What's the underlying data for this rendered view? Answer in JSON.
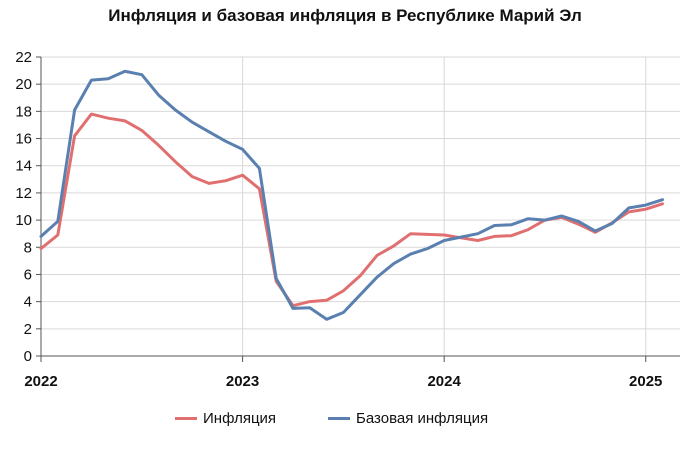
{
  "chart_data": {
    "type": "line",
    "title": "Инфляция и базовая инфляция в Республике Марий Эл",
    "xlabel": "",
    "ylabel": "",
    "ylim": [
      0,
      22
    ],
    "yticks": [
      0,
      2,
      4,
      6,
      8,
      10,
      12,
      14,
      16,
      18,
      20,
      22
    ],
    "xlim": [
      2022.0,
      2025.17
    ],
    "xticks": [
      {
        "value": 2022,
        "label": "2022"
      },
      {
        "value": 2023,
        "label": "2023"
      },
      {
        "value": 2024,
        "label": "2024"
      },
      {
        "value": 2025,
        "label": "2025"
      }
    ],
    "grid": true,
    "legend_position": "bottom",
    "series": [
      {
        "name": "Инфляция",
        "color": "#e07070",
        "points": [
          [
            2022.0,
            7.9
          ],
          [
            2022.0833,
            8.9
          ],
          [
            2022.1667,
            16.2
          ],
          [
            2022.25,
            17.8
          ],
          [
            2022.3333,
            17.5
          ],
          [
            2022.4167,
            17.3
          ],
          [
            2022.5,
            16.6
          ],
          [
            2022.5833,
            15.5
          ],
          [
            2022.6667,
            14.3
          ],
          [
            2022.75,
            13.2
          ],
          [
            2022.8333,
            12.7
          ],
          [
            2022.9167,
            12.9
          ],
          [
            2023.0,
            13.3
          ],
          [
            2023.0833,
            12.3
          ],
          [
            2023.1667,
            5.5
          ],
          [
            2023.25,
            3.7
          ],
          [
            2023.3333,
            4.0
          ],
          [
            2023.4167,
            4.1
          ],
          [
            2023.5,
            4.8
          ],
          [
            2023.5833,
            5.9
          ],
          [
            2023.6667,
            7.4
          ],
          [
            2023.75,
            8.1
          ],
          [
            2023.8333,
            9.0
          ],
          [
            2023.9167,
            8.95
          ],
          [
            2024.0,
            8.9
          ],
          [
            2024.0833,
            8.7
          ],
          [
            2024.1667,
            8.5
          ],
          [
            2024.25,
            8.8
          ],
          [
            2024.3333,
            8.85
          ],
          [
            2024.4167,
            9.3
          ],
          [
            2024.5,
            10.0
          ],
          [
            2024.5833,
            10.2
          ],
          [
            2024.6667,
            9.7
          ],
          [
            2024.75,
            9.1
          ],
          [
            2024.8333,
            9.8
          ],
          [
            2024.9167,
            10.6
          ],
          [
            2025.0,
            10.8
          ],
          [
            2025.0833,
            11.2
          ]
        ]
      },
      {
        "name": "Базовая инфляция",
        "color": "#5a80b0",
        "points": [
          [
            2022.0,
            8.8
          ],
          [
            2022.0833,
            9.9
          ],
          [
            2022.1667,
            18.1
          ],
          [
            2022.25,
            20.3
          ],
          [
            2022.3333,
            20.4
          ],
          [
            2022.4167,
            20.95
          ],
          [
            2022.5,
            20.7
          ],
          [
            2022.5833,
            19.2
          ],
          [
            2022.6667,
            18.1
          ],
          [
            2022.75,
            17.2
          ],
          [
            2022.8333,
            16.5
          ],
          [
            2022.9167,
            15.8
          ],
          [
            2023.0,
            15.2
          ],
          [
            2023.0833,
            13.8
          ],
          [
            2023.1667,
            5.7
          ],
          [
            2023.25,
            3.5
          ],
          [
            2023.3333,
            3.55
          ],
          [
            2023.4167,
            2.7
          ],
          [
            2023.5,
            3.2
          ],
          [
            2023.5833,
            4.5
          ],
          [
            2023.6667,
            5.8
          ],
          [
            2023.75,
            6.8
          ],
          [
            2023.8333,
            7.5
          ],
          [
            2023.9167,
            7.9
          ],
          [
            2024.0,
            8.5
          ],
          [
            2024.0833,
            8.75
          ],
          [
            2024.1667,
            9.0
          ],
          [
            2024.25,
            9.6
          ],
          [
            2024.3333,
            9.65
          ],
          [
            2024.4167,
            10.1
          ],
          [
            2024.5,
            10.0
          ],
          [
            2024.5833,
            10.3
          ],
          [
            2024.6667,
            9.9
          ],
          [
            2024.75,
            9.2
          ],
          [
            2024.8333,
            9.75
          ],
          [
            2024.9167,
            10.9
          ],
          [
            2025.0,
            11.1
          ],
          [
            2025.0833,
            11.5
          ]
        ]
      }
    ]
  }
}
